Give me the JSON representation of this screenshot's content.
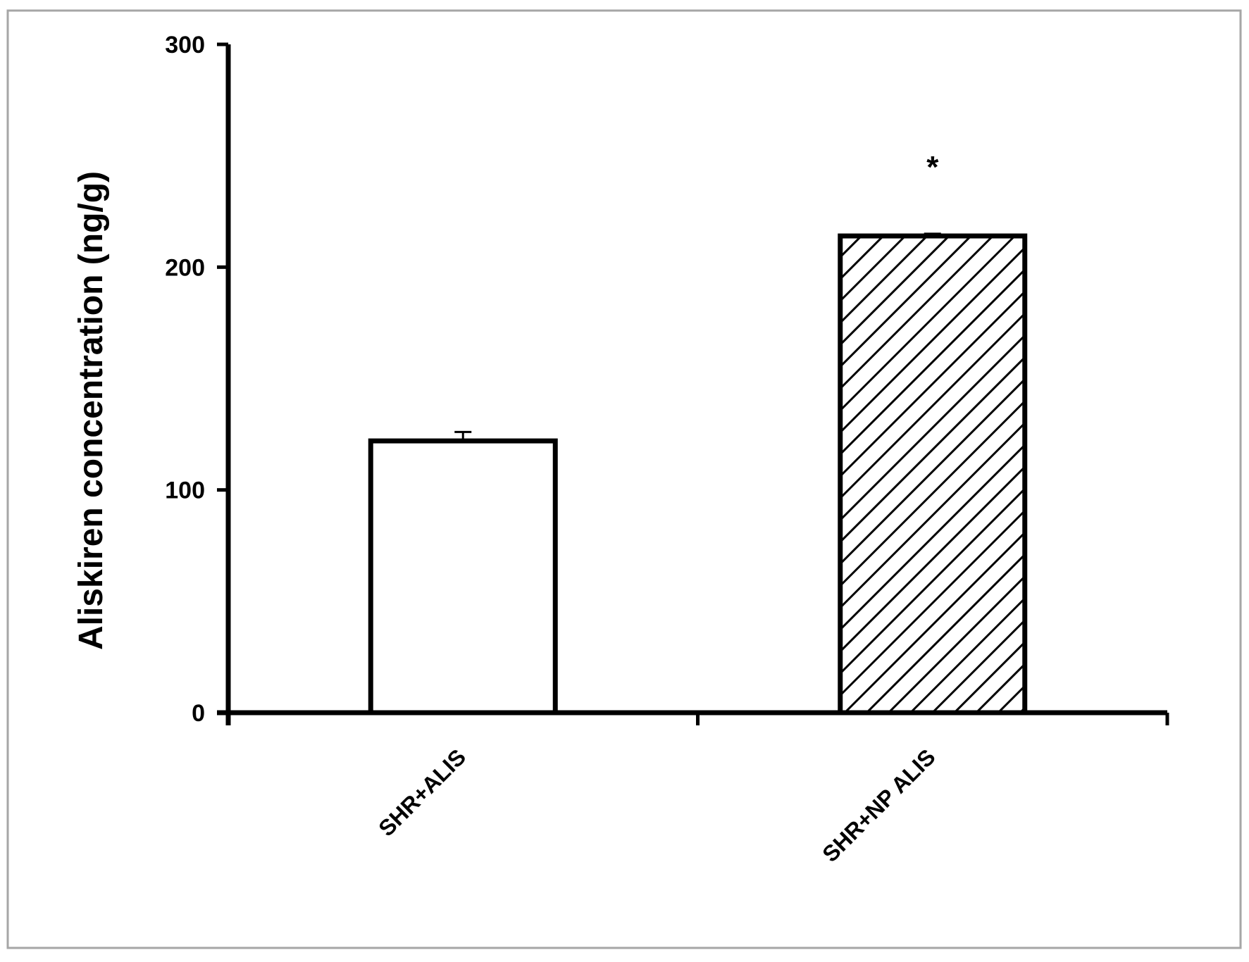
{
  "chart_data": {
    "type": "bar",
    "categories": [
      "SHR+ALIS",
      "SHR+NP ALIS"
    ],
    "series": [
      {
        "values": [
          122,
          214
        ],
        "errors": [
          4,
          1
        ],
        "fills": [
          "solid-white",
          "diagonal-hatch"
        ]
      }
    ],
    "ylabel": "Aliskiren concentration (ng/g)",
    "xlabel": "",
    "title": "",
    "ylim": [
      0,
      300
    ],
    "yticks": [
      {
        "value": 0,
        "label": "0"
      },
      {
        "value": 100,
        "label": "100"
      },
      {
        "value": 200,
        "label": "200"
      },
      {
        "value": 300,
        "label": "300"
      }
    ],
    "annotations": [
      {
        "category": "SHR+NP ALIS",
        "text": "*"
      }
    ],
    "grid": false,
    "legend": "none",
    "colors": {
      "axis": "#000000",
      "bar_stroke": "#000000",
      "bar_fill": "#ffffff",
      "frame": "#a6a6a6"
    }
  }
}
